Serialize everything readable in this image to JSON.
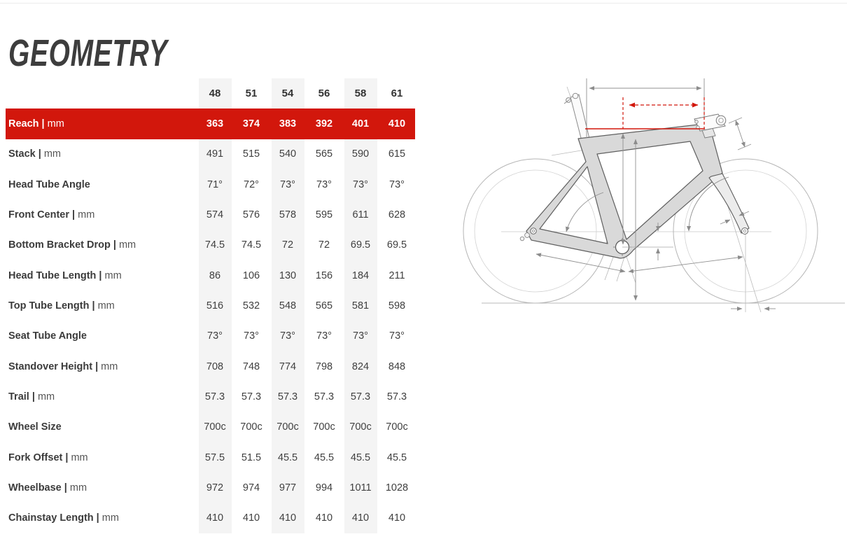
{
  "page": {
    "title": "GEOMETRY"
  },
  "table": {
    "sizes": [
      "48",
      "51",
      "54",
      "56",
      "58",
      "61"
    ],
    "rows": [
      {
        "label": "Reach",
        "unit": "mm",
        "highlight": true,
        "values": [
          "363",
          "374",
          "383",
          "392",
          "401",
          "410"
        ]
      },
      {
        "label": "Stack",
        "unit": "mm",
        "highlight": false,
        "values": [
          "491",
          "515",
          "540",
          "565",
          "590",
          "615"
        ]
      },
      {
        "label": "Head Tube Angle",
        "unit": "",
        "highlight": false,
        "values": [
          "71°",
          "72°",
          "73°",
          "73°",
          "73°",
          "73°"
        ]
      },
      {
        "label": "Front Center",
        "unit": "mm",
        "highlight": false,
        "values": [
          "574",
          "576",
          "578",
          "595",
          "611",
          "628"
        ]
      },
      {
        "label": "Bottom Bracket Drop",
        "unit": "mm",
        "highlight": false,
        "values": [
          "74.5",
          "74.5",
          "72",
          "72",
          "69.5",
          "69.5"
        ]
      },
      {
        "label": "Head Tube Length",
        "unit": "mm",
        "highlight": false,
        "values": [
          "86",
          "106",
          "130",
          "156",
          "184",
          "211"
        ]
      },
      {
        "label": "Top Tube Length",
        "unit": "mm",
        "highlight": false,
        "values": [
          "516",
          "532",
          "548",
          "565",
          "581",
          "598"
        ]
      },
      {
        "label": "Seat Tube Angle",
        "unit": "",
        "highlight": false,
        "values": [
          "73°",
          "73°",
          "73°",
          "73°",
          "73°",
          "73°"
        ]
      },
      {
        "label": "Standover Height",
        "unit": "mm",
        "highlight": false,
        "values": [
          "708",
          "748",
          "774",
          "798",
          "824",
          "848"
        ]
      },
      {
        "label": "Trail",
        "unit": "mm",
        "highlight": false,
        "values": [
          "57.3",
          "57.3",
          "57.3",
          "57.3",
          "57.3",
          "57.3"
        ]
      },
      {
        "label": "Wheel Size",
        "unit": "",
        "highlight": false,
        "values": [
          "700c",
          "700c",
          "700c",
          "700c",
          "700c",
          "700c"
        ]
      },
      {
        "label": "Fork Offset",
        "unit": "mm",
        "highlight": false,
        "values": [
          "57.5",
          "51.5",
          "45.5",
          "45.5",
          "45.5",
          "45.5"
        ]
      },
      {
        "label": "Wheelbase",
        "unit": "mm",
        "highlight": false,
        "values": [
          "972",
          "974",
          "977",
          "994",
          "1011",
          "1028"
        ]
      },
      {
        "label": "Chainstay Length",
        "unit": "mm",
        "highlight": false,
        "values": [
          "410",
          "410",
          "410",
          "410",
          "410",
          "410"
        ]
      }
    ]
  },
  "diagram": {
    "highlighted_dimension": "Reach"
  },
  "colors": {
    "highlight_red": "#d2170c",
    "stripe_gray": "#f4f4f4",
    "title_gray": "#3d3d3d",
    "frame_fill": "#d9d9d9",
    "line_gray": "#909090"
  }
}
